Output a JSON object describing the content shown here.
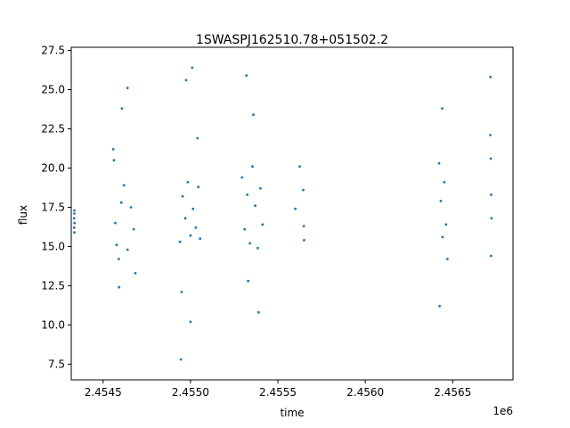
{
  "chart_data": {
    "type": "scatter",
    "title": "1SWASPJ162510.78+051502.2",
    "xlabel": "time",
    "ylabel": "flux",
    "x_offset_label": "1e6",
    "xlim": [
      2454318,
      2456845
    ],
    "ylim": [
      6.5,
      27.7
    ],
    "x_ticks": [
      {
        "value": 2454500,
        "label": "2.4545"
      },
      {
        "value": 2455000,
        "label": "2.4550"
      },
      {
        "value": 2455500,
        "label": "2.4555"
      },
      {
        "value": 2456000,
        "label": "2.4560"
      },
      {
        "value": 2456500,
        "label": "2.4565"
      }
    ],
    "y_ticks": [
      {
        "value": 7.5,
        "label": "7.5"
      },
      {
        "value": 10.0,
        "label": "10.0"
      },
      {
        "value": 12.5,
        "label": "12.5"
      },
      {
        "value": 15.0,
        "label": "15.0"
      },
      {
        "value": 17.5,
        "label": "17.5"
      },
      {
        "value": 20.0,
        "label": "20.0"
      },
      {
        "value": 22.5,
        "label": "22.5"
      },
      {
        "value": 25.0,
        "label": "25.0"
      },
      {
        "value": 27.5,
        "label": "27.5"
      }
    ],
    "grid": false,
    "point_color": "#1f77b4",
    "series": [
      {
        "x": [
          2454335,
          2454335,
          2454336,
          2454336,
          2454336,
          2454337,
          2454558,
          2454562,
          2454570,
          2454578,
          2454590,
          2454605,
          2454620,
          2454640,
          2454660,
          2454675,
          2454685,
          2454592,
          2454608,
          2454640,
          2454940,
          2454955,
          2454970,
          2454985,
          2455000,
          2455015,
          2455030,
          2455045,
          2455055,
          2454950,
          2454975,
          2455000,
          2455040,
          2454945,
          2455010,
          2455295,
          2455310,
          2455325,
          2455340,
          2455355,
          2455370,
          2455385,
          2455400,
          2455412,
          2455330,
          2455360,
          2455320,
          2455390,
          2455600,
          2455625,
          2455645,
          2455648,
          2455650,
          2456422,
          2456432,
          2456442,
          2456452,
          2456462,
          2456470,
          2456440,
          2456425,
          2456715,
          2456718,
          2456720,
          2456722,
          2456716,
          2456719
        ],
        "y": [
          16.2,
          16.8,
          17.1,
          15.9,
          17.3,
          16.5,
          21.2,
          20.5,
          16.5,
          15.1,
          14.2,
          17.8,
          18.9,
          14.8,
          17.5,
          16.1,
          13.3,
          12.4,
          23.8,
          25.1,
          15.3,
          18.2,
          16.8,
          19.1,
          15.7,
          17.4,
          16.2,
          18.8,
          15.5,
          12.1,
          25.6,
          10.2,
          21.9,
          7.8,
          26.4,
          19.4,
          16.1,
          18.3,
          15.2,
          20.1,
          17.6,
          14.9,
          18.7,
          16.4,
          12.8,
          23.4,
          25.9,
          10.8,
          17.4,
          20.1,
          18.6,
          16.3,
          15.4,
          20.3,
          17.9,
          15.6,
          19.1,
          16.4,
          14.2,
          23.8,
          11.2,
          22.1,
          20.6,
          18.3,
          16.8,
          25.8,
          14.4
        ]
      }
    ]
  }
}
